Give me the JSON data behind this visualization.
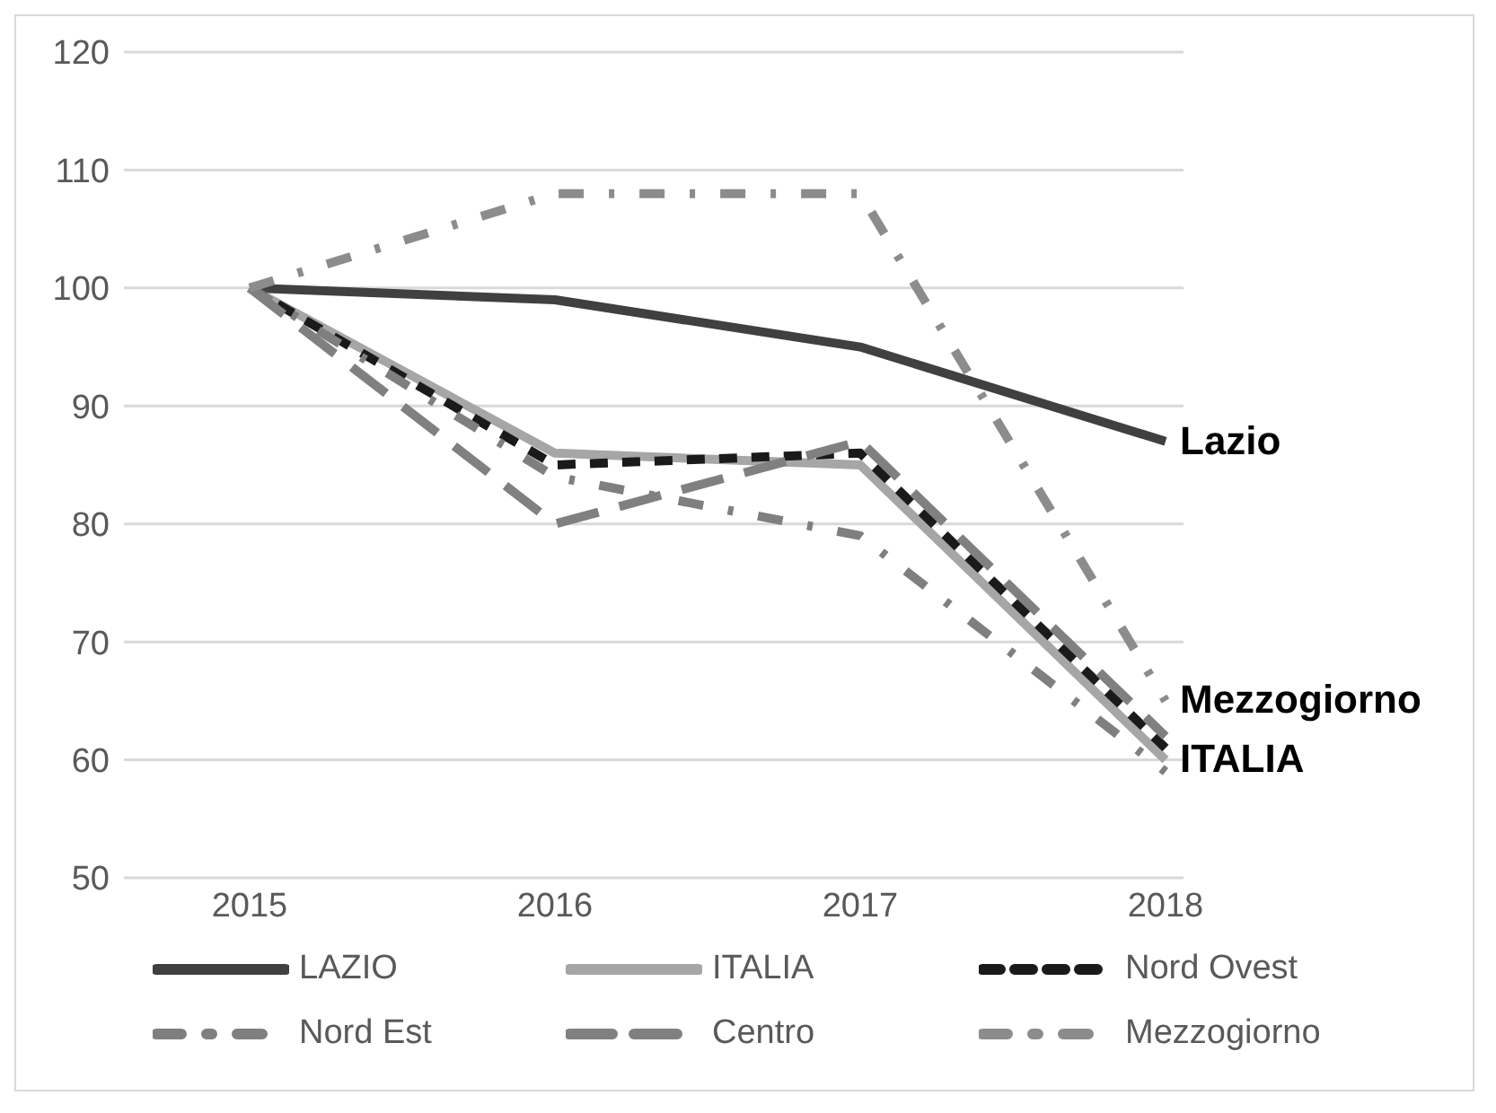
{
  "chart_data": {
    "type": "line",
    "categories": [
      "2015",
      "2016",
      "2017",
      "2018"
    ],
    "series": [
      {
        "name": "LAZIO",
        "color": "#404040",
        "line_style": "solid",
        "values": [
          100,
          99,
          95,
          87
        ]
      },
      {
        "name": "ITALIA",
        "color": "#a6a6a6",
        "line_style": "solid",
        "values": [
          100,
          86,
          85,
          60
        ]
      },
      {
        "name": "Nord Ovest",
        "color": "#1a1a1a",
        "line_style": "dashed",
        "values": [
          100,
          85,
          86,
          61
        ]
      },
      {
        "name": "Nord Est",
        "color": "#7f7f7f",
        "line_style": "dashdot",
        "values": [
          100,
          84,
          79,
          59
        ]
      },
      {
        "name": "Centro",
        "color": "#808080",
        "line_style": "longdash",
        "values": [
          100,
          80,
          87,
          62
        ]
      },
      {
        "name": "Mezzogiorno",
        "color": "#8c8c8c",
        "line_style": "dashdot",
        "values": [
          100,
          108,
          108,
          65
        ]
      }
    ],
    "ylim": [
      50,
      120
    ],
    "yticks": [
      50,
      60,
      70,
      80,
      90,
      100,
      110,
      120
    ],
    "grid": "y",
    "legend": "bottom",
    "annotations": [
      {
        "text": "Lazio",
        "x": "2018",
        "y": 87
      },
      {
        "text": "Mezzogiorno",
        "x": "2018",
        "y": 65
      },
      {
        "text": "ITALIA",
        "x": "2018",
        "y": 60
      }
    ]
  }
}
